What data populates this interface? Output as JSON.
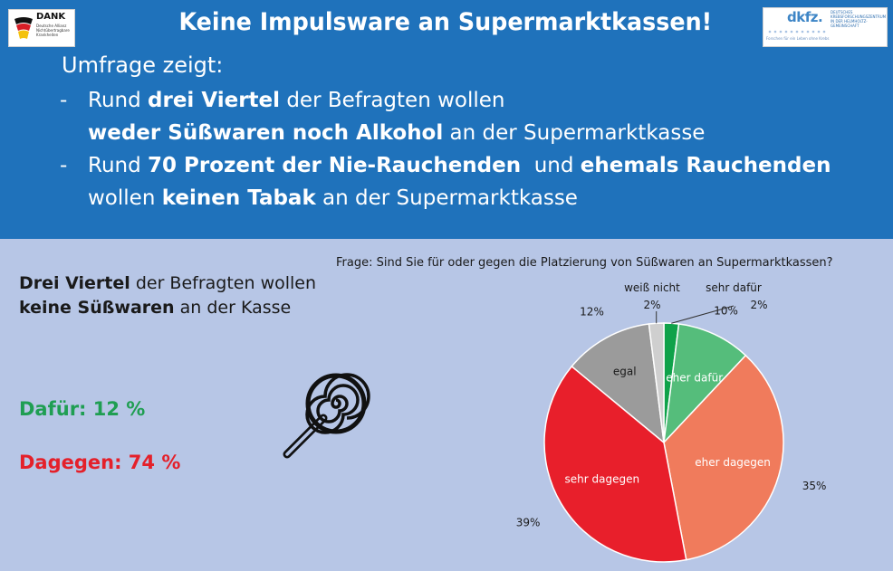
{
  "logos": {
    "dank": {
      "name": "DANK",
      "subtitle": "Deutsche Allianz Nichtübertragbare Krankheiten"
    },
    "dkfz": {
      "name": "dkfz.",
      "subtitle": "DEUTSCHES KREBSFORSCHUNGSZENTRUM IN DER HELMHOLTZ-GEMEINSCHAFT",
      "tagline": "Forschen für ein Leben ohne Krebs"
    }
  },
  "header": {
    "title": "Keine Impulsware an Supermarktkassen!",
    "intro": "Umfrage zeigt:",
    "bullet_dash": "-",
    "bullet1": {
      "line1": {
        "a": "Rund ",
        "b": "drei Viertel",
        "c": " der Befragten wollen"
      },
      "line2": {
        "a": "weder Süßwaren noch Alkohol",
        "b": " an der Supermarktkasse"
      }
    },
    "bullet2": {
      "line1": {
        "a": "Rund ",
        "b": "70 Prozent der Nie-Rauchenden",
        "c": "  und ",
        "d": "ehemals Rauchenden"
      },
      "line2": {
        "a": "wollen ",
        "b": "keinen Tabak",
        "c": " an der Supermarktkasse"
      }
    }
  },
  "summary": {
    "line1": {
      "a": "Drei Viertel",
      "b": " der Befragten wollen"
    },
    "line2": {
      "a": "keine Süßwaren",
      "b": " an der Kasse"
    },
    "for": "Dafür: 12 %",
    "against": "Dagegen: 74 %",
    "colors": {
      "for": "#1f9e52",
      "against": "#e4202a"
    },
    "icon": "lollipop-icon"
  },
  "chart_data": {
    "type": "pie",
    "title": "Frage: Sind Sie für oder gegen die Platzierung von Süßwaren an Supermarktkassen?",
    "slices": [
      {
        "name": "sehr dafür",
        "value": 2,
        "label": "2%",
        "color": "#0fa24a"
      },
      {
        "name": "eher dafür",
        "value": 10,
        "label": "10%",
        "color": "#55bd7b"
      },
      {
        "name": "eher dagegen",
        "value": 35,
        "label": "35%",
        "color": "#f07b5c"
      },
      {
        "name": "sehr dagegen",
        "value": 39,
        "label": "39%",
        "color": "#e81f2b"
      },
      {
        "name": "egal",
        "value": 12,
        "label": "12%",
        "color": "#9b9b9b"
      },
      {
        "name": "weiß nicht",
        "value": 2,
        "label": "2%",
        "color": "#cfcfcf"
      }
    ]
  }
}
